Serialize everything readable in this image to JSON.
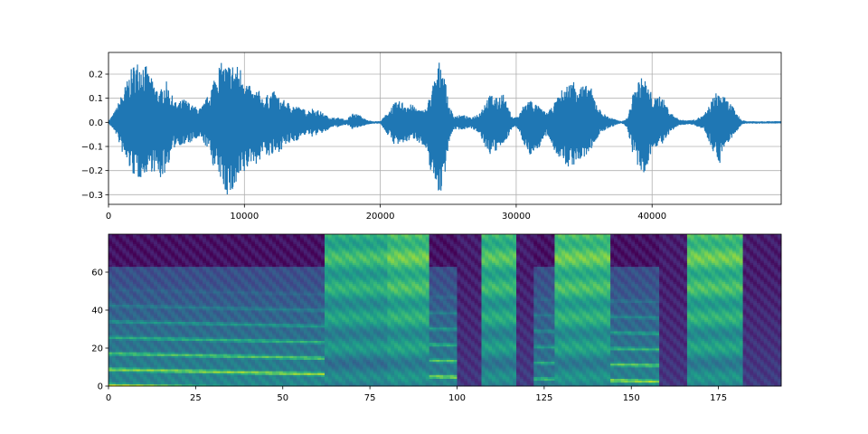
{
  "chart_data": [
    {
      "type": "line",
      "title": "",
      "xlabel": "",
      "ylabel": "",
      "xlim": [
        0,
        49500
      ],
      "ylim": [
        -0.34,
        0.29
      ],
      "x_ticks": [
        0,
        10000,
        20000,
        30000,
        40000
      ],
      "x_tick_labels": [
        "0",
        "10000",
        "20000",
        "30000",
        "40000"
      ],
      "y_ticks": [
        -0.3,
        -0.2,
        -0.1,
        0.0,
        0.1,
        0.2
      ],
      "y_tick_labels": [
        "−0.3",
        "−0.2",
        "−0.1",
        "0.0",
        "0.1",
        "0.2"
      ],
      "grid": true,
      "line_color": "#1f77b4",
      "envelope": {
        "x": [
          0,
          500,
          1200,
          1800,
          2200,
          2600,
          3000,
          3400,
          3800,
          4200,
          4600,
          5000,
          5600,
          6200,
          6800,
          7400,
          7800,
          8200,
          8600,
          9000,
          9400,
          9800,
          10200,
          10600,
          11000,
          11400,
          11800,
          12200,
          12600,
          13000,
          13400,
          13800,
          14200,
          14600,
          15000,
          15500,
          16000,
          16500,
          17000,
          17500,
          18000,
          18500,
          19000,
          19500,
          20000,
          20500,
          21000,
          21500,
          22000,
          22500,
          23000,
          23400,
          23800,
          24100,
          24400,
          24700,
          25000,
          25400,
          25800,
          26200,
          26600,
          27000,
          27400,
          27800,
          28200,
          28600,
          29000,
          29400,
          29800,
          30200,
          30600,
          31000,
          31400,
          31800,
          32200,
          32600,
          33000,
          33400,
          33800,
          34200,
          34600,
          35000,
          35400,
          35800,
          36200,
          36600,
          37000,
          37400,
          37800,
          38200,
          38600,
          39000,
          39400,
          39800,
          40200,
          40600,
          41000,
          41400,
          41800,
          42200,
          42600,
          43000,
          43400,
          43800,
          44200,
          44600,
          45000,
          45400,
          45800,
          46200,
          46600,
          47000,
          47500,
          48000,
          48500,
          49000,
          49500
        ],
        "upper": [
          0.005,
          0.05,
          0.15,
          0.24,
          0.26,
          0.26,
          0.2,
          0.16,
          0.13,
          0.18,
          0.12,
          0.08,
          0.1,
          0.07,
          0.06,
          0.12,
          0.2,
          0.25,
          0.24,
          0.25,
          0.24,
          0.23,
          0.17,
          0.13,
          0.14,
          0.1,
          0.12,
          0.13,
          0.1,
          0.09,
          0.08,
          0.07,
          0.06,
          0.05,
          0.06,
          0.05,
          0.03,
          0.02,
          0.02,
          0.01,
          0.04,
          0.03,
          0.01,
          0.005,
          0.005,
          0.04,
          0.08,
          0.09,
          0.08,
          0.07,
          0.05,
          0.06,
          0.15,
          0.2,
          0.27,
          0.22,
          0.08,
          0.03,
          0.03,
          0.03,
          0.02,
          0.03,
          0.05,
          0.1,
          0.12,
          0.1,
          0.13,
          0.06,
          0.02,
          0.03,
          0.08,
          0.1,
          0.08,
          0.06,
          0.04,
          0.06,
          0.1,
          0.14,
          0.16,
          0.18,
          0.17,
          0.15,
          0.16,
          0.1,
          0.05,
          0.03,
          0.02,
          0.01,
          0.005,
          0.02,
          0.12,
          0.18,
          0.19,
          0.14,
          0.1,
          0.12,
          0.08,
          0.04,
          0.02,
          0.01,
          0.01,
          0.01,
          0.02,
          0.03,
          0.07,
          0.12,
          0.13,
          0.1,
          0.08,
          0.04,
          0.01,
          0.005,
          0.005,
          0.005,
          0.005,
          0.005,
          0.005
        ],
        "lower": [
          -0.005,
          -0.04,
          -0.16,
          -0.22,
          -0.24,
          -0.22,
          -0.2,
          -0.21,
          -0.24,
          -0.21,
          -0.14,
          -0.09,
          -0.1,
          -0.08,
          -0.07,
          -0.12,
          -0.2,
          -0.23,
          -0.3,
          -0.31,
          -0.28,
          -0.24,
          -0.2,
          -0.16,
          -0.18,
          -0.12,
          -0.15,
          -0.14,
          -0.12,
          -0.1,
          -0.09,
          -0.08,
          -0.06,
          -0.05,
          -0.06,
          -0.05,
          -0.04,
          -0.02,
          -0.02,
          -0.01,
          -0.03,
          -0.02,
          -0.01,
          -0.005,
          -0.005,
          -0.05,
          -0.09,
          -0.1,
          -0.08,
          -0.07,
          -0.09,
          -0.14,
          -0.22,
          -0.26,
          -0.31,
          -0.24,
          -0.1,
          -0.03,
          -0.03,
          -0.03,
          -0.02,
          -0.04,
          -0.06,
          -0.12,
          -0.14,
          -0.12,
          -0.1,
          -0.06,
          -0.02,
          -0.03,
          -0.1,
          -0.14,
          -0.12,
          -0.1,
          -0.06,
          -0.09,
          -0.14,
          -0.17,
          -0.19,
          -0.18,
          -0.17,
          -0.15,
          -0.13,
          -0.08,
          -0.05,
          -0.03,
          -0.02,
          -0.01,
          -0.005,
          -0.03,
          -0.14,
          -0.2,
          -0.23,
          -0.15,
          -0.1,
          -0.1,
          -0.08,
          -0.04,
          -0.02,
          -0.01,
          -0.01,
          -0.01,
          -0.02,
          -0.03,
          -0.08,
          -0.14,
          -0.17,
          -0.1,
          -0.07,
          -0.04,
          -0.01,
          -0.005,
          -0.005,
          -0.005,
          -0.005,
          -0.005,
          -0.005
        ]
      }
    },
    {
      "type": "heatmap",
      "title": "",
      "xlabel": "",
      "ylabel": "",
      "xlim": [
        0,
        193
      ],
      "ylim": [
        0,
        80
      ],
      "x_ticks": [
        0,
        25,
        50,
        75,
        100,
        125,
        150,
        175
      ],
      "x_tick_labels": [
        "0",
        "25",
        "50",
        "75",
        "100",
        "125",
        "150",
        "175"
      ],
      "y_ticks": [
        0,
        20,
        40,
        60
      ],
      "y_tick_labels": [
        "0",
        "20",
        "40",
        "60"
      ],
      "colormap": "viridis",
      "n_frames": 193,
      "n_bins": 80,
      "segments": [
        {
          "start": 0,
          "end": 62,
          "kind": "voiced",
          "energy": 0.85
        },
        {
          "start": 62,
          "end": 80,
          "kind": "fricative",
          "energy": 0.55
        },
        {
          "start": 80,
          "end": 92,
          "kind": "fricative",
          "energy": 0.65
        },
        {
          "start": 92,
          "end": 100,
          "kind": "voiced",
          "energy": 0.8
        },
        {
          "start": 100,
          "end": 107,
          "kind": "silence",
          "energy": 0.2
        },
        {
          "start": 107,
          "end": 117,
          "kind": "fricative",
          "energy": 0.6
        },
        {
          "start": 117,
          "end": 122,
          "kind": "silence",
          "energy": 0.25
        },
        {
          "start": 122,
          "end": 128,
          "kind": "voiced",
          "energy": 0.6
        },
        {
          "start": 128,
          "end": 144,
          "kind": "fricative",
          "energy": 0.65
        },
        {
          "start": 144,
          "end": 158,
          "kind": "voiced",
          "energy": 0.8
        },
        {
          "start": 158,
          "end": 166,
          "kind": "silence",
          "energy": 0.2
        },
        {
          "start": 166,
          "end": 182,
          "kind": "fricative",
          "energy": 0.65
        },
        {
          "start": 182,
          "end": 193,
          "kind": "silence",
          "energy": 0.25
        }
      ]
    }
  ]
}
